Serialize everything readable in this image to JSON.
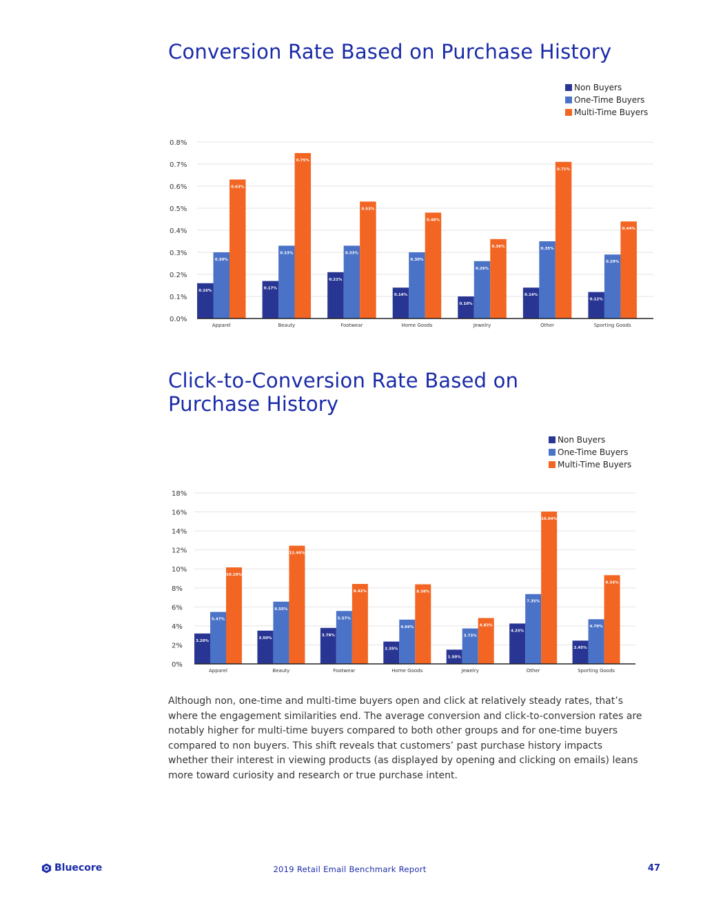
{
  "charts": {
    "chart1": {
      "title": "Conversion Rate Based on Purchase History"
    },
    "chart2": {
      "title": "Click-to-Conversion Rate Based on Purchase History"
    }
  },
  "colors": {
    "non": "#283593",
    "one": "#4a72c6",
    "multi": "#f26522",
    "title": "#1a2aa8"
  },
  "chart_data": [
    {
      "type": "bar",
      "title": "Conversion Rate Based on Purchase History",
      "categories": [
        "Apparel",
        "Beauty",
        "Footwear",
        "Home Goods",
        "Jewelry",
        "Other",
        "Sporting Goods"
      ],
      "series": [
        {
          "name": "Non Buyers",
          "values": [
            0.16,
            0.17,
            0.21,
            0.14,
            0.1,
            0.14,
            0.12
          ],
          "labels": [
            "0.16%",
            "0.17%",
            "0.21%",
            "0.14%",
            "0.10%",
            "0.14%",
            "0.12%"
          ]
        },
        {
          "name": "One-Time Buyers",
          "values": [
            0.3,
            0.33,
            0.33,
            0.3,
            0.26,
            0.35,
            0.29
          ],
          "labels": [
            "0.30%",
            "0.33%",
            "0.33%",
            "0.30%",
            "0.26%",
            "0.35%",
            "0.29%"
          ]
        },
        {
          "name": "Multi-Time Buyers",
          "values": [
            0.63,
            0.75,
            0.53,
            0.48,
            0.36,
            0.71,
            0.44
          ],
          "labels": [
            "0.63%",
            "0.75%",
            "0.53%",
            "0.48%",
            "0.36%",
            "0.71%",
            "0.44%"
          ]
        }
      ],
      "ylim": [
        0,
        0.8
      ],
      "yticks": [
        "0.0%",
        "0.1%",
        "0.2%",
        "0.3%",
        "0.4%",
        "0.5%",
        "0.6%",
        "0.7%",
        "0.8%"
      ],
      "xlabel": "",
      "ylabel": "",
      "legend": "top-right",
      "grid": true
    },
    {
      "type": "bar",
      "title": "Click-to-Conversion Rate Based on Purchase History",
      "categories": [
        "Apparel",
        "Beauty",
        "Footwear",
        "Home Goods",
        "Jewelry",
        "Other",
        "Sporting Goods"
      ],
      "series": [
        {
          "name": "Non Buyers",
          "values": [
            3.2,
            3.5,
            3.79,
            2.35,
            1.5,
            4.25,
            2.45
          ],
          "labels": [
            "3.20%",
            "3.50%",
            "3.79%",
            "2.35%",
            "1.50%",
            "4.25%",
            "2.45%"
          ]
        },
        {
          "name": "One-Time Buyers",
          "values": [
            5.47,
            6.55,
            5.57,
            4.66,
            3.73,
            7.35,
            4.7
          ],
          "labels": [
            "5.47%",
            "6.55%",
            "5.57%",
            "4.66%",
            "3.73%",
            "7.35%",
            "4.70%"
          ]
        },
        {
          "name": "Multi-Time Buyers",
          "values": [
            10.16,
            12.44,
            8.42,
            8.38,
            4.83,
            16.04,
            9.34
          ],
          "labels": [
            "10.16%",
            "12.44%",
            "8.42%",
            "8.38%",
            "4.83%",
            "16.04%",
            "9.34%"
          ]
        }
      ],
      "ylim": [
        0,
        18
      ],
      "yticks": [
        "0%",
        "2%",
        "4%",
        "6%",
        "8%",
        "10%",
        "12%",
        "14%",
        "16%",
        "18%"
      ],
      "xlabel": "",
      "ylabel": "",
      "legend": "top-right",
      "grid": true
    }
  ],
  "body_text": "Although non, one-time and multi-time buyers open and click at relatively steady rates, that’s where the engagement similarities end. The average conversion and click-to-conversion rates are notably higher for multi-time buyers compared to both other groups and for one-time buyers compared to non buyers. This shift reveals that customers’ past purchase history impacts whether their interest in viewing products (as displayed by opening and clicking on emails) leans more toward curiosity and research or true purchase intent.",
  "footer": {
    "logo_text": "Bluecore",
    "logo_icon": "bluecore-cube-icon",
    "report_title": "2019 Retail Email Benchmark Report",
    "page_number": "47"
  }
}
